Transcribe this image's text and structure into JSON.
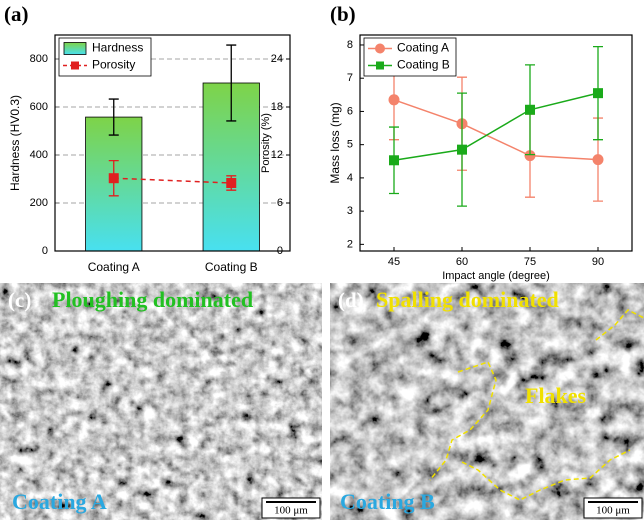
{
  "chart_data": [
    {
      "type": "bar",
      "panel_label": "(a)",
      "categories": [
        "Coating A",
        "Coating B"
      ],
      "ylabel": "Hardness (HV0.3)",
      "y2label": "Porosity (%)",
      "ylim": [
        0,
        900
      ],
      "yticks": [
        0,
        200,
        400,
        600,
        800
      ],
      "y2lim": [
        0,
        27
      ],
      "y2ticks": [
        0,
        6,
        12,
        18,
        24
      ],
      "grid": true,
      "legend": "upper left",
      "series": [
        {
          "name": "Hardness",
          "type": "bar",
          "color": "#7ed348",
          "gradient": [
            "#7ed348",
            "#48e0f0"
          ],
          "values": [
            558,
            700
          ],
          "errors": [
            75,
            158
          ]
        },
        {
          "name": "Porosity",
          "type": "line",
          "axis": "y2",
          "color": "#e02020",
          "marker": "square",
          "dashed": true,
          "values": [
            9.1,
            8.5
          ],
          "errors": [
            2.2,
            0.9
          ]
        }
      ]
    },
    {
      "type": "line",
      "panel_label": "(b)",
      "x": [
        45,
        60,
        75,
        90
      ],
      "xlim": [
        37.5,
        97.5
      ],
      "xticks": [
        45,
        60,
        75,
        90
      ],
      "xlabel": "Impact angle (degree)",
      "ylabel": "Mass loss (mg)",
      "ylim": [
        1.8,
        8.3
      ],
      "yticks": [
        2,
        3,
        4,
        5,
        6,
        7,
        8
      ],
      "grid": false,
      "legend": "upper left",
      "series": [
        {
          "name": "Coating A",
          "color": "#f4836b",
          "marker": "circle",
          "values": [
            6.35,
            5.63,
            4.67,
            4.55
          ],
          "errors": [
            1.2,
            1.4,
            1.25,
            1.25
          ]
        },
        {
          "name": "Coating B",
          "color": "#1aaa1a",
          "marker": "square",
          "values": [
            4.53,
            4.85,
            6.05,
            6.55
          ],
          "errors": [
            1.0,
            1.7,
            1.35,
            1.4
          ]
        }
      ]
    }
  ],
  "images": [
    {
      "panel_label": "(c)",
      "caption": "Ploughing dominated",
      "sample": "Coating A",
      "scale_bar": "100 μm"
    },
    {
      "panel_label": "(d)",
      "caption": "Spalling dominated",
      "annotation": "Flakes",
      "sample": "Coating B",
      "scale_bar": "100 μm"
    }
  ]
}
